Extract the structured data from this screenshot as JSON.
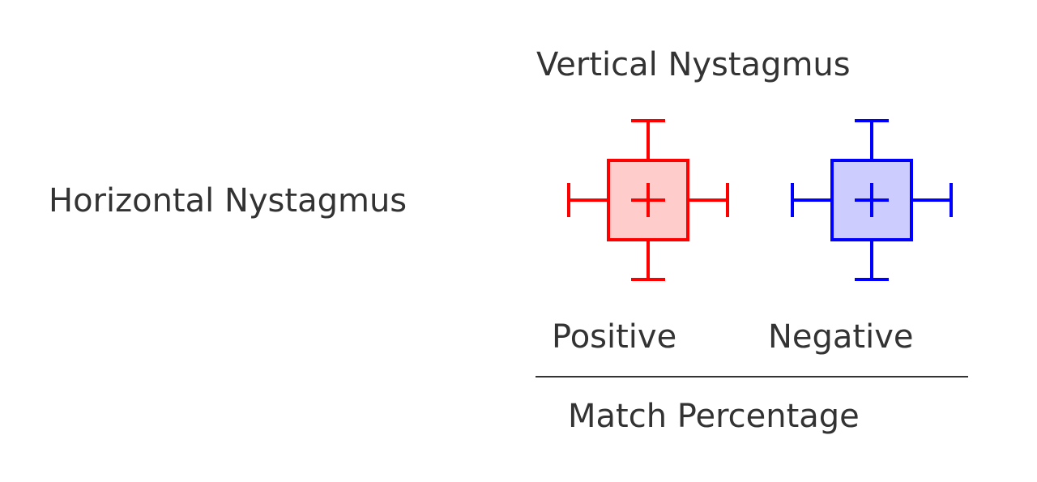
{
  "labels": {
    "vertical": "Vertical Nystagmus",
    "horizontal": "Horizontal Nystagmus",
    "positive": "Positive",
    "negative": "Negative",
    "match": "Match Percentage"
  },
  "glyphs": [
    {
      "name": "positive",
      "stroke": "#ff0000",
      "fill": "#ffcccc"
    },
    {
      "name": "negative",
      "stroke": "#0000ff",
      "fill": "#ccccff"
    }
  ],
  "colors": {
    "text": "#333333",
    "divider": "#333333"
  }
}
